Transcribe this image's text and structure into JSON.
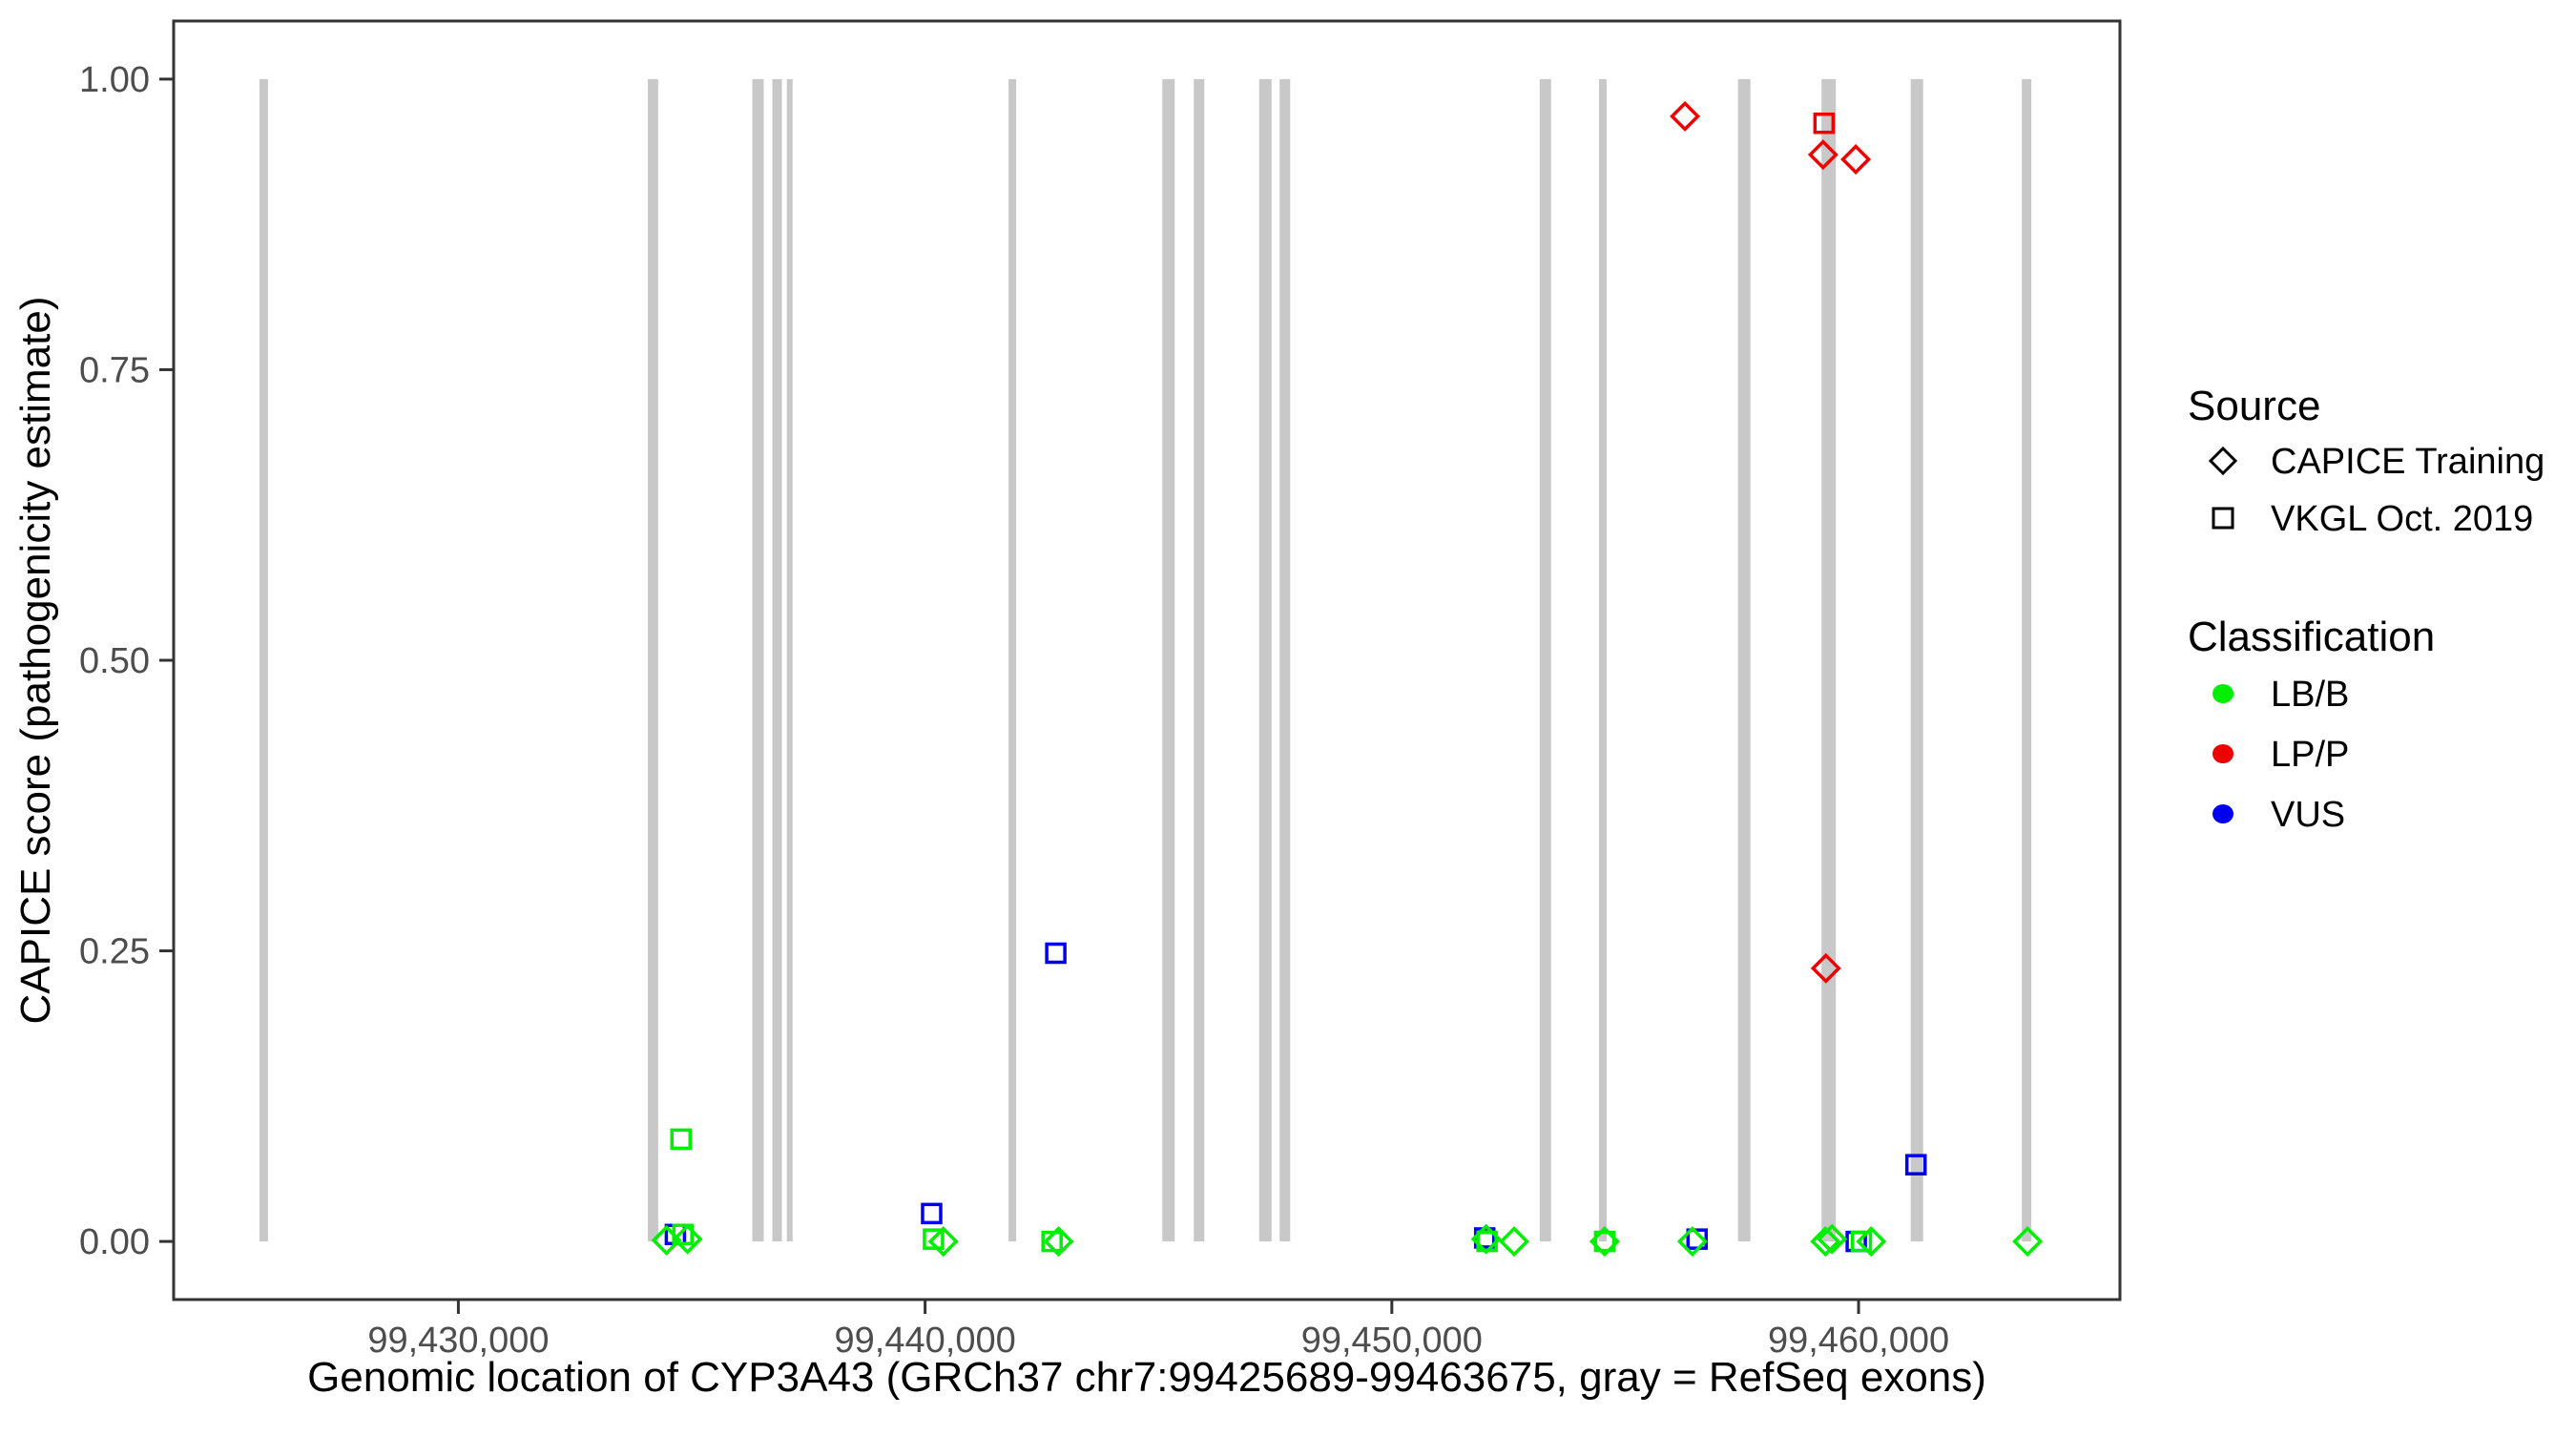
{
  "chart_data": {
    "type": "scatter",
    "xlabel": "Genomic location of CYP3A43 (GRCh37 chr7:99425689-99463675, gray = RefSeq exons)",
    "ylabel": "CAPICE score (pathogenicity estimate)",
    "x_domain": [
      99423900,
      99465600
    ],
    "y_domain": [
      -0.05,
      1.05
    ],
    "grid": "off",
    "x_ticks": [
      {
        "pos": 99430000,
        "label": "99,430,000"
      },
      {
        "pos": 99440000,
        "label": "99,440,000"
      },
      {
        "pos": 99450000,
        "label": "99,450,000"
      },
      {
        "pos": 99460000,
        "label": "99,460,000"
      }
    ],
    "y_ticks": [
      {
        "value": 0.0,
        "label": "0.00"
      },
      {
        "value": 0.25,
        "label": "0.25"
      },
      {
        "value": 0.5,
        "label": "0.50"
      },
      {
        "value": 0.75,
        "label": "0.75"
      },
      {
        "value": 1.0,
        "label": "1.00"
      }
    ],
    "exons_note": "gray = RefSeq exons, drawn as vertical bars spanning score 0 to 1",
    "exons": [
      {
        "center": 99425830,
        "width_bp": 184
      },
      {
        "center": 99434170,
        "width_bp": 225
      },
      {
        "center": 99436420,
        "width_bp": 245
      },
      {
        "center": 99436830,
        "width_bp": 204
      },
      {
        "center": 99437100,
        "width_bp": 123
      },
      {
        "center": 99441870,
        "width_bp": 164
      },
      {
        "center": 99445215,
        "width_bp": 266
      },
      {
        "center": 99445870,
        "width_bp": 225
      },
      {
        "center": 99447290,
        "width_bp": 266
      },
      {
        "center": 99447710,
        "width_bp": 225
      },
      {
        "center": 99453290,
        "width_bp": 245
      },
      {
        "center": 99454520,
        "width_bp": 164
      },
      {
        "center": 99457550,
        "width_bp": 266
      },
      {
        "center": 99459360,
        "width_bp": 307
      },
      {
        "center": 99461250,
        "width_bp": 266
      },
      {
        "center": 99463600,
        "width_bp": 204
      }
    ],
    "points": [
      {
        "x": 99434650,
        "y": 0.006,
        "source": "VKGL Oct. 2019",
        "classification": "VUS"
      },
      {
        "x": 99440140,
        "y": 0.024,
        "source": "VKGL Oct. 2019",
        "classification": "VUS"
      },
      {
        "x": 99442800,
        "y": 0.248,
        "source": "VKGL Oct. 2019",
        "classification": "VUS"
      },
      {
        "x": 99451990,
        "y": 0.003,
        "source": "VKGL Oct. 2019",
        "classification": "VUS"
      },
      {
        "x": 99456540,
        "y": 0.002,
        "source": "VKGL Oct. 2019",
        "classification": "VUS"
      },
      {
        "x": 99459950,
        "y": 0.0,
        "source": "VKGL Oct. 2019",
        "classification": "VUS"
      },
      {
        "x": 99461230,
        "y": 0.066,
        "source": "VKGL Oct. 2019",
        "classification": "VUS"
      },
      {
        "x": 99434770,
        "y": 0.088,
        "source": "VKGL Oct. 2019",
        "classification": "LB/B"
      },
      {
        "x": 99434460,
        "y": 0.001,
        "source": "CAPICE Training",
        "classification": "LB/B"
      },
      {
        "x": 99434910,
        "y": 0.002,
        "source": "CAPICE Training",
        "classification": "LB/B"
      },
      {
        "x": 99434810,
        "y": 0.006,
        "source": "VKGL Oct. 2019",
        "classification": "LB/B"
      },
      {
        "x": 99440180,
        "y": 0.002,
        "source": "VKGL Oct. 2019",
        "classification": "LB/B"
      },
      {
        "x": 99440390,
        "y": 0.0,
        "source": "CAPICE Training",
        "classification": "LB/B"
      },
      {
        "x": 99442720,
        "y": 0.0,
        "source": "VKGL Oct. 2019",
        "classification": "LB/B"
      },
      {
        "x": 99442860,
        "y": 0.0,
        "source": "CAPICE Training",
        "classification": "LB/B"
      },
      {
        "x": 99452040,
        "y": 0.0,
        "source": "VKGL Oct. 2019",
        "classification": "LB/B"
      },
      {
        "x": 99452020,
        "y": 0.002,
        "source": "CAPICE Training",
        "classification": "LB/B"
      },
      {
        "x": 99452620,
        "y": 0.0,
        "source": "CAPICE Training",
        "classification": "LB/B"
      },
      {
        "x": 99454560,
        "y": 0.0,
        "source": "VKGL Oct. 2019",
        "classification": "LB/B"
      },
      {
        "x": 99454560,
        "y": 0.0,
        "source": "CAPICE Training",
        "classification": "LB/B"
      },
      {
        "x": 99456440,
        "y": 0.0,
        "source": "CAPICE Training",
        "classification": "LB/B"
      },
      {
        "x": 99459290,
        "y": 0.0,
        "source": "CAPICE Training",
        "classification": "LB/B"
      },
      {
        "x": 99459430,
        "y": 0.002,
        "source": "CAPICE Training",
        "classification": "LB/B"
      },
      {
        "x": 99460060,
        "y": 0.0,
        "source": "VKGL Oct. 2019",
        "classification": "LB/B"
      },
      {
        "x": 99460270,
        "y": 0.0,
        "source": "CAPICE Training",
        "classification": "LB/B"
      },
      {
        "x": 99463620,
        "y": 0.0,
        "source": "CAPICE Training",
        "classification": "LB/B"
      },
      {
        "x": 99456280,
        "y": 0.968,
        "source": "CAPICE Training",
        "classification": "LP/P"
      },
      {
        "x": 99459260,
        "y": 0.962,
        "source": "VKGL Oct. 2019",
        "classification": "LP/P"
      },
      {
        "x": 99459240,
        "y": 0.935,
        "source": "CAPICE Training",
        "classification": "LP/P"
      },
      {
        "x": 99459940,
        "y": 0.931,
        "source": "CAPICE Training",
        "classification": "LP/P"
      },
      {
        "x": 99459300,
        "y": 0.235,
        "source": "CAPICE Training",
        "classification": "LP/P"
      }
    ],
    "legend": {
      "source_title": "Source",
      "sources": [
        {
          "label": "CAPICE Training",
          "shape": "diamond"
        },
        {
          "label": "VKGL Oct. 2019",
          "shape": "square"
        }
      ],
      "classification_title": "Classification",
      "classes": [
        {
          "label": "LB/B",
          "color": "#00ee00"
        },
        {
          "label": "LP/P",
          "color": "#ee0000"
        },
        {
          "label": "VUS",
          "color": "#0000ee"
        }
      ],
      "position": "right"
    },
    "colors": {
      "LB/B": "#00ee00",
      "LP/P": "#ee0000",
      "VUS": "#0000ee",
      "exon": "#c8c8c8",
      "axis": "#333333",
      "tick_text": "#4d4d4d"
    }
  }
}
